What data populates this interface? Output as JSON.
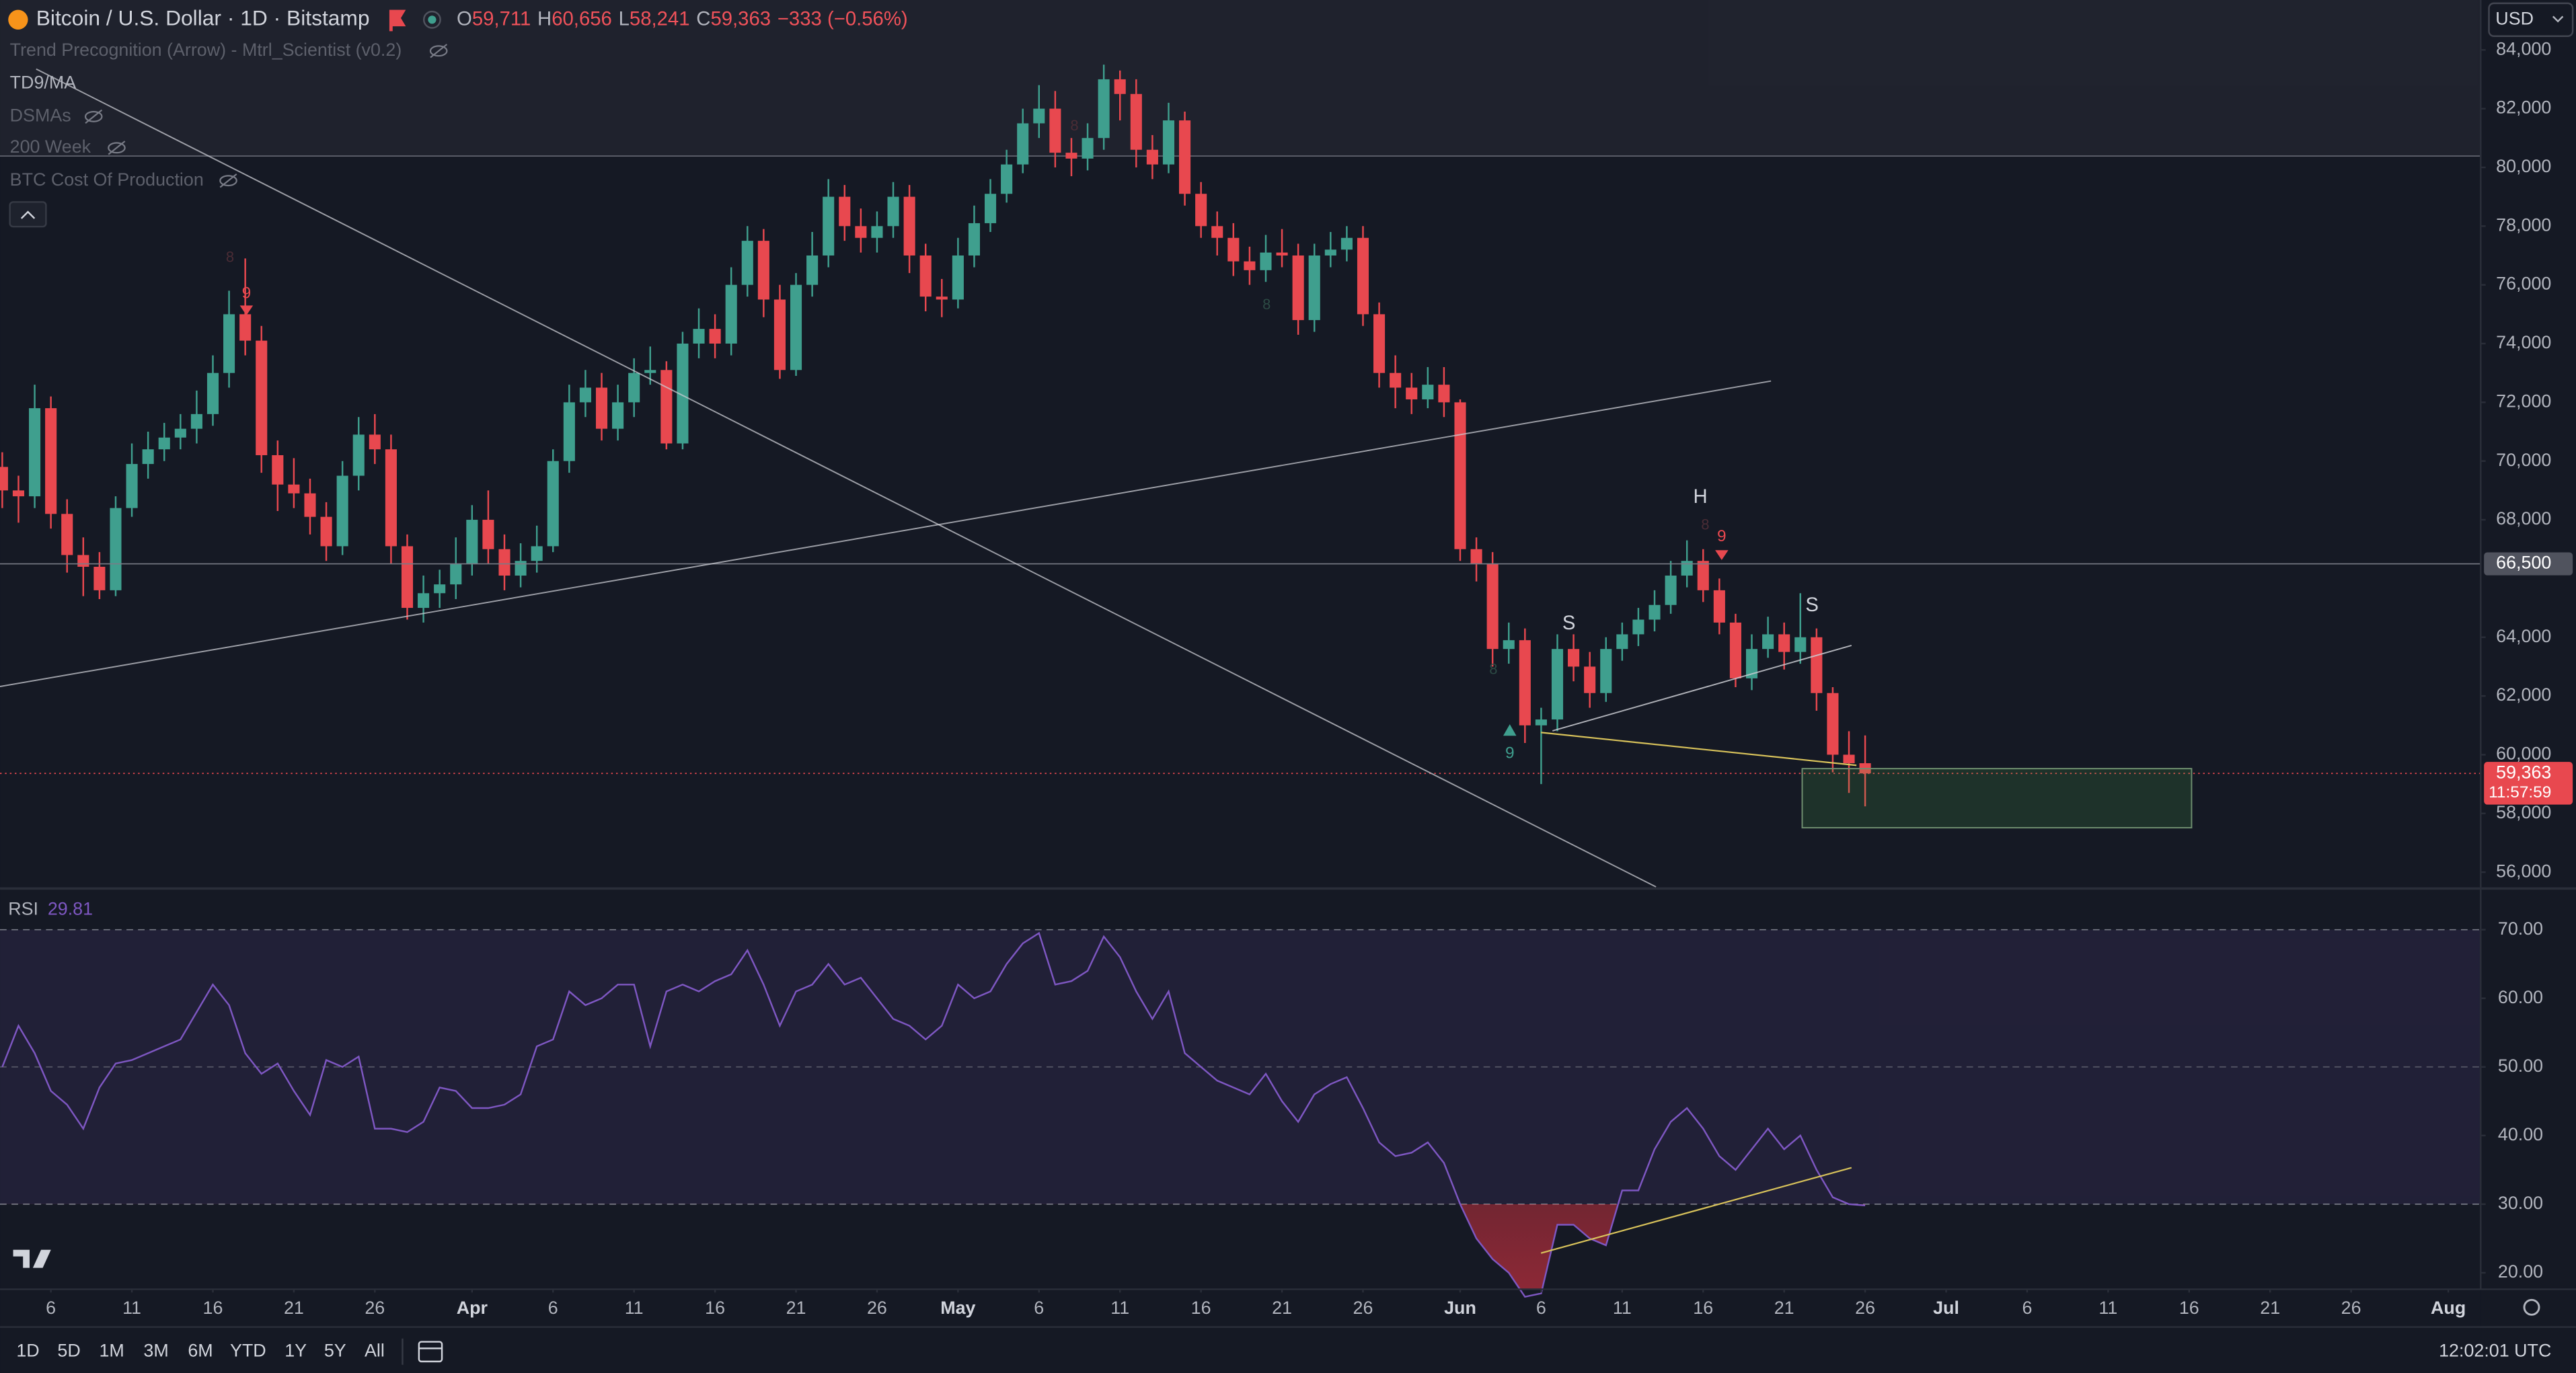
{
  "header": {
    "title": "Bitcoin / U.S. Dollar · 1D · Bitstamp",
    "ohlc": [
      {
        "label": "O",
        "value": "59,711"
      },
      {
        "label": "H",
        "value": "60,656"
      },
      {
        "label": "L",
        "value": "58,241"
      },
      {
        "label": "C",
        "value": "59,363"
      }
    ],
    "change": "−333 (−0.56%)",
    "currency": "USD"
  },
  "indicators": [
    "Trend Precognition (Arrow) - Mtrl_Scientist (v0.2)",
    "TD9/MA",
    "DSMAs",
    "200 Week",
    "BTC Cost Of Production"
  ],
  "annotations": {
    "patterns": [
      "S",
      "H",
      "S"
    ],
    "td_counts": [
      "9",
      "9",
      "9",
      "8",
      "8",
      "8",
      "8",
      "8"
    ]
  },
  "chart_data": [
    {
      "type": "candlestick",
      "up_color": "#3f9f8e",
      "down_color": "#e8484f",
      "open": [
        69800,
        69000,
        68800,
        71800,
        68200,
        66800,
        66400,
        65600,
        68400,
        69900,
        70400,
        70800,
        71100,
        71600,
        73000,
        75000,
        74100,
        70200,
        69200,
        68900,
        68100,
        67100,
        69500,
        70900,
        70400,
        67100,
        65000,
        65500,
        65800,
        66500,
        68000,
        67000,
        66100,
        66600,
        67100,
        70000,
        72000,
        72500,
        71100,
        72000,
        73000,
        73100,
        70600,
        74000,
        74500,
        74000,
        76000,
        77500,
        75500,
        73100,
        76000,
        77000,
        79000,
        78000,
        77600,
        78000,
        79000,
        77000,
        75600,
        75500,
        77000,
        78100,
        79100,
        80100,
        81500,
        82000,
        80500,
        80300,
        81000,
        83000,
        82500,
        80600,
        80100,
        81600,
        79100,
        78000,
        77600,
        76800,
        76500,
        77100,
        77000,
        74800,
        77000,
        77200,
        77600,
        75000,
        73000,
        72500,
        72100,
        72600,
        72000,
        67000,
        66500,
        63600,
        63900,
        61000,
        61200,
        63600,
        63000,
        62100,
        63600,
        64100,
        64600,
        65100,
        66100,
        66600,
        65600,
        64500,
        62600,
        63600,
        64100,
        63500,
        64000,
        62100,
        60000,
        59711
      ],
      "high": [
        70300,
        69500,
        72600,
        72200,
        68700,
        67400,
        66900,
        68800,
        70600,
        71000,
        71300,
        71600,
        72400,
        73600,
        75800,
        76900,
        74600,
        70700,
        70100,
        69400,
        68600,
        70000,
        71500,
        71600,
        70900,
        67500,
        66100,
        66300,
        67400,
        68500,
        69000,
        67500,
        67200,
        67800,
        70400,
        72600,
        73100,
        73000,
        72600,
        73500,
        73900,
        73400,
        74400,
        75200,
        75000,
        76600,
        78000,
        77900,
        76000,
        76400,
        77800,
        79600,
        79400,
        78600,
        78500,
        79500,
        79400,
        77400,
        76200,
        77600,
        78700,
        79600,
        80600,
        82000,
        82800,
        82600,
        81000,
        81500,
        83500,
        83300,
        83000,
        81100,
        82200,
        81900,
        79500,
        78500,
        78100,
        77300,
        77700,
        77900,
        77400,
        77400,
        77800,
        78000,
        78000,
        75400,
        73600,
        73000,
        73200,
        73200,
        72100,
        67400,
        66900,
        64500,
        64300,
        61600,
        64100,
        64100,
        63500,
        64000,
        64500,
        65000,
        65600,
        66600,
        67300,
        67000,
        66000,
        64800,
        64100,
        64700,
        64500,
        65500,
        64300,
        62300,
        60800,
        60656
      ],
      "low": [
        68400,
        67900,
        68400,
        67700,
        66200,
        65400,
        65300,
        65400,
        68100,
        69400,
        70000,
        70400,
        70600,
        71200,
        72500,
        73600,
        69600,
        68300,
        68400,
        67500,
        66600,
        66800,
        69000,
        69900,
        66500,
        64600,
        64500,
        65000,
        65300,
        66100,
        66500,
        65600,
        65700,
        66200,
        66900,
        69600,
        71500,
        70700,
        70700,
        71500,
        72600,
        70400,
        70400,
        73500,
        73500,
        73600,
        75600,
        74900,
        72800,
        72900,
        75600,
        76600,
        77500,
        77100,
        77100,
        77600,
        76400,
        75100,
        74900,
        75200,
        76600,
        77800,
        78800,
        79800,
        81000,
        80000,
        79700,
        79900,
        80600,
        81600,
        80000,
        79600,
        79800,
        78700,
        77600,
        77000,
        76300,
        76000,
        76100,
        76600,
        74300,
        74400,
        76600,
        76800,
        74600,
        72500,
        71800,
        71600,
        71800,
        71500,
        66600,
        65900,
        63000,
        63100,
        60400,
        59000,
        60800,
        62500,
        61600,
        61800,
        63200,
        63700,
        64200,
        64800,
        65700,
        65200,
        64100,
        62300,
        62200,
        63300,
        62900,
        63100,
        61500,
        59400,
        58700,
        58241
      ],
      "close": [
        69000,
        68800,
        71800,
        68200,
        66800,
        66400,
        65600,
        68400,
        69900,
        70400,
        70800,
        71100,
        71600,
        73000,
        75000,
        74100,
        70200,
        69200,
        68900,
        68100,
        67100,
        69500,
        70900,
        70400,
        67100,
        65000,
        65500,
        65800,
        66500,
        68000,
        67000,
        66100,
        66600,
        67100,
        70000,
        72000,
        72500,
        71100,
        72000,
        73000,
        73100,
        70600,
        74000,
        74500,
        74000,
        76000,
        77500,
        75500,
        73100,
        76000,
        77000,
        79000,
        78000,
        77600,
        78000,
        79000,
        77000,
        75600,
        75500,
        77000,
        78100,
        79100,
        80100,
        81500,
        82000,
        80500,
        80300,
        81000,
        83000,
        82500,
        80600,
        80100,
        81600,
        79100,
        78000,
        77600,
        76800,
        76500,
        77100,
        77000,
        74800,
        77000,
        77200,
        77600,
        75000,
        73000,
        72500,
        72100,
        72600,
        72000,
        67000,
        66500,
        63600,
        63900,
        61000,
        61200,
        63600,
        63000,
        62100,
        63600,
        64100,
        64600,
        65100,
        66100,
        66600,
        65600,
        64500,
        62600,
        63600,
        64100,
        63500,
        64000,
        62100,
        60000,
        59711,
        59363
      ],
      "xlim": [
        -0.14,
        153.0
      ],
      "xticks": [
        {
          "value": 3,
          "label": "6"
        },
        {
          "value": 8,
          "label": "11"
        },
        {
          "value": 13,
          "label": "16"
        },
        {
          "value": 18,
          "label": "21"
        },
        {
          "value": 23,
          "label": "26"
        },
        {
          "value": 29,
          "label": "Apr"
        },
        {
          "value": 34,
          "label": "6"
        },
        {
          "value": 39,
          "label": "11"
        },
        {
          "value": 44,
          "label": "16"
        },
        {
          "value": 49,
          "label": "21"
        },
        {
          "value": 54,
          "label": "26"
        },
        {
          "value": 59,
          "label": "May"
        },
        {
          "value": 64,
          "label": "6"
        },
        {
          "value": 69,
          "label": "11"
        },
        {
          "value": 74,
          "label": "16"
        },
        {
          "value": 79,
          "label": "21"
        },
        {
          "value": 84,
          "label": "26"
        },
        {
          "value": 90,
          "label": "Jun"
        },
        {
          "value": 95,
          "label": "6"
        },
        {
          "value": 100,
          "label": "11"
        },
        {
          "value": 105,
          "label": "16"
        },
        {
          "value": 110,
          "label": "21"
        },
        {
          "value": 115,
          "label": "26"
        },
        {
          "value": 120,
          "label": "Jul"
        },
        {
          "value": 125,
          "label": "6"
        },
        {
          "value": 130,
          "label": "11"
        },
        {
          "value": 135,
          "label": "16"
        },
        {
          "value": 140,
          "label": "21"
        },
        {
          "value": 145,
          "label": "26"
        },
        {
          "value": 151,
          "label": "Aug"
        }
      ],
      "ylim": [
        55500,
        85700
      ],
      "yticks": [
        {
          "value": 56000,
          "label": "56,000"
        },
        {
          "value": 58000,
          "label": "58,000"
        },
        {
          "value": 60000,
          "label": "60,000"
        },
        {
          "value": 62000,
          "label": "62,000"
        },
        {
          "value": 64000,
          "label": "64,000"
        },
        {
          "value": 68000,
          "label": "68,000"
        },
        {
          "value": 70000,
          "label": "70,000"
        },
        {
          "value": 72000,
          "label": "72,000"
        },
        {
          "value": 74000,
          "label": "74,000"
        },
        {
          "value": 76000,
          "label": "76,000"
        },
        {
          "value": 78000,
          "label": "78,000"
        },
        {
          "value": 80000,
          "label": "80,000"
        },
        {
          "value": 82000,
          "label": "82,000"
        },
        {
          "value": 84000,
          "label": "84,000"
        }
      ],
      "grid": false,
      "hlines": [
        {
          "value": 66500,
          "label": "66,500"
        }
      ],
      "price_tag": {
        "value": 59363,
        "label": "59,363",
        "countdown": "11:57:59"
      }
    },
    {
      "type": "line",
      "title": "RSI",
      "color": "#7e57c2",
      "values": [
        50,
        56,
        52,
        46.5,
        44.5,
        41,
        47,
        50.5,
        51,
        52,
        53,
        54,
        58,
        62,
        59,
        52,
        49,
        50.5,
        46.5,
        43,
        51,
        50,
        51.5,
        41,
        41,
        40.5,
        42,
        47,
        46.5,
        44,
        44,
        44.5,
        46,
        53,
        54,
        61,
        59,
        60,
        62,
        62,
        53,
        61,
        62,
        61,
        62.5,
        63.5,
        67,
        62,
        56,
        61,
        62,
        65,
        62,
        63,
        60,
        57,
        56,
        54,
        56,
        62,
        60,
        61,
        65,
        68,
        69.5,
        62,
        62.5,
        64,
        69,
        66,
        61,
        57,
        61,
        52,
        50,
        48,
        47,
        46,
        49,
        45,
        42,
        46,
        47.5,
        48.5,
        44,
        39,
        37,
        37.5,
        39,
        36,
        30,
        25,
        22,
        20,
        16.5,
        17,
        27,
        27,
        25,
        24,
        32,
        32,
        38,
        42,
        44,
        41,
        37,
        35,
        38,
        41,
        38,
        40,
        35,
        31,
        30,
        29.81
      ],
      "ylim": [
        17.6,
        76
      ],
      "yticks": [
        {
          "value": 20,
          "label": "20.00"
        },
        {
          "value": 30,
          "label": "30.00"
        },
        {
          "value": 40,
          "label": "40.00"
        },
        {
          "value": 50,
          "label": "50.00"
        },
        {
          "value": 60,
          "label": "60.00"
        },
        {
          "value": 70,
          "label": "70.00"
        }
      ],
      "band": [
        30,
        70
      ],
      "midline": 50
    }
  ],
  "toolbar": {
    "ranges": [
      "1D",
      "5D",
      "1M",
      "3M",
      "6M",
      "YTD",
      "1Y",
      "5Y",
      "All"
    ],
    "time": "12:02:01 UTC"
  }
}
